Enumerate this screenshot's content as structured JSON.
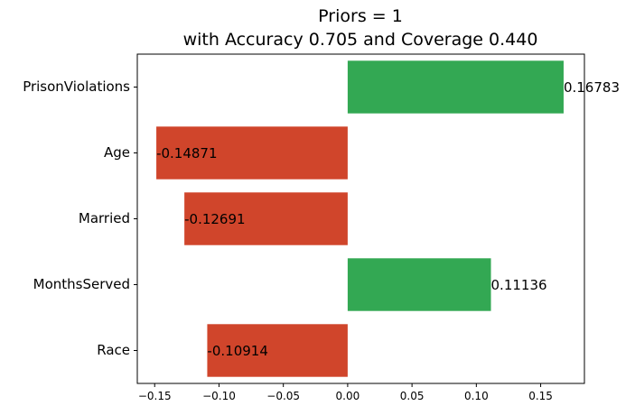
{
  "chart_data": {
    "type": "bar",
    "orientation": "horizontal",
    "title": "Priors = 1",
    "subtitle": "with Accuracy 0.705 and Coverage 0.440",
    "categories": [
      "PrisonViolations",
      "Age",
      "Married",
      "MonthsServed",
      "Race"
    ],
    "values": [
      0.16783,
      -0.14871,
      -0.12691,
      0.11136,
      -0.10914
    ],
    "value_labels": [
      "0.16783",
      "-0.14871",
      "-0.12691",
      "0.11136",
      "-0.10914"
    ],
    "xlim": [
      -0.1635,
      0.184
    ],
    "xticks": [
      -0.15,
      -0.1,
      -0.05,
      0.0,
      0.05,
      0.1,
      0.15
    ],
    "xtick_labels": [
      "−0.15",
      "−0.10",
      "−0.05",
      "0.00",
      "0.05",
      "0.10",
      "0.15"
    ],
    "colors": {
      "positive": "#33a853",
      "negative": "#d0452b"
    },
    "xlabel": "",
    "ylabel": "",
    "grid": false,
    "legend": false
  }
}
